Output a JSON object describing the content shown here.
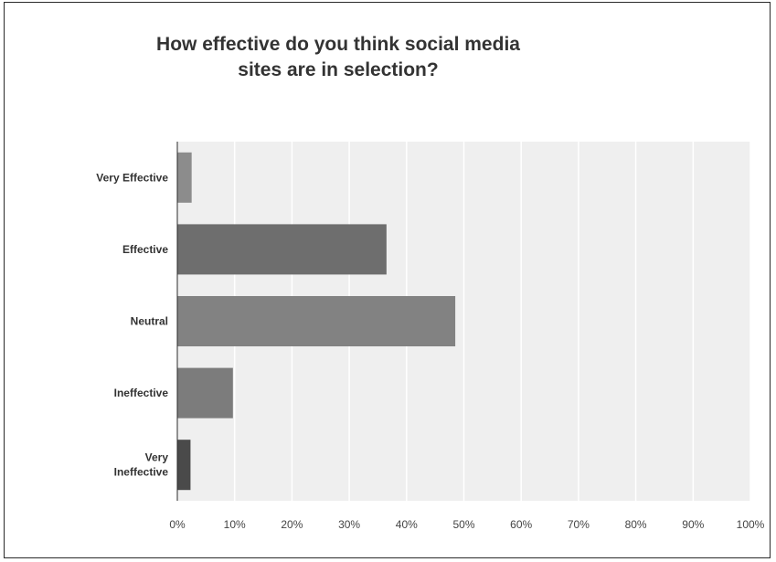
{
  "chart_data": {
    "type": "bar",
    "orientation": "horizontal",
    "title_lines": [
      "How effective do you think social media",
      "sites are in selection?"
    ],
    "categories": [
      [
        "Very Effective"
      ],
      [
        "Effective"
      ],
      [
        "Neutral"
      ],
      [
        "Ineffective"
      ],
      [
        "Very",
        "Ineffective"
      ]
    ],
    "values": [
      2.5,
      36.5,
      48.5,
      9.7,
      2.3
    ],
    "bar_colors": [
      "#8c8c8c",
      "#6e6e6e",
      "#828282",
      "#7c7c7c",
      "#4a4a4a"
    ],
    "xlim": [
      0,
      100
    ],
    "x_ticks": [
      0,
      10,
      20,
      30,
      40,
      50,
      60,
      70,
      80,
      90,
      100
    ],
    "x_tick_labels": [
      "0%",
      "10%",
      "20%",
      "30%",
      "40%",
      "50%",
      "60%",
      "70%",
      "80%",
      "90%",
      "100%"
    ],
    "grid": true,
    "plot_background": "#efefef",
    "gridline_color": "#ffffff",
    "legend": "none"
  }
}
